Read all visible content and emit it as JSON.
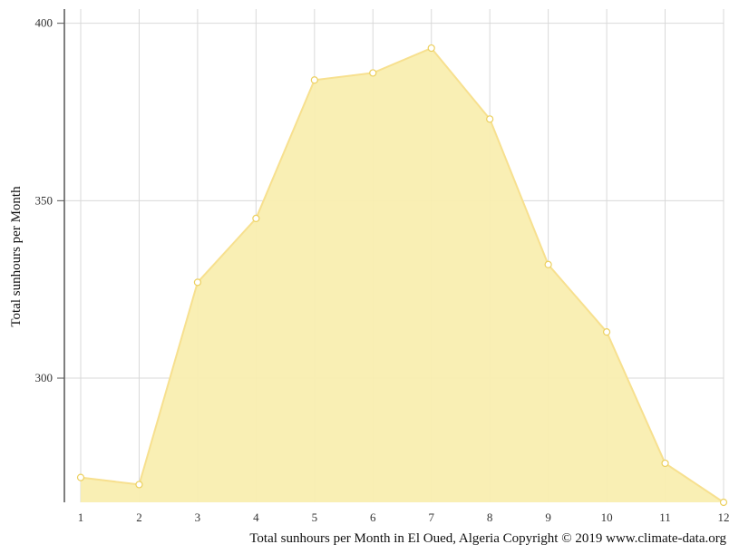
{
  "chart_data": {
    "type": "area",
    "x": [
      1,
      2,
      3,
      4,
      5,
      6,
      7,
      8,
      9,
      10,
      11,
      12
    ],
    "series": [
      {
        "values": [
          272,
          270,
          327,
          345,
          384,
          386,
          393,
          373,
          332,
          313,
          276,
          265
        ]
      }
    ],
    "xlabel": "",
    "ylabel": "Total sunhours per Month",
    "xlim": [
      1,
      12
    ],
    "ylim": [
      265,
      404
    ],
    "yticks": [
      300,
      350,
      400
    ],
    "xticks": [
      1,
      2,
      3,
      4,
      5,
      6,
      7,
      8,
      9,
      10,
      11,
      12
    ],
    "grid": true,
    "caption": "Total sunhours per Month in El Oued, Algeria Copyright © 2019 www.climate-data.org"
  },
  "colors": {
    "fill": "#f9eeb0",
    "line": "#f7e08f",
    "marker_fill": "#ffffff",
    "marker_stroke": "#ecd060",
    "grid": "#d9d9d9",
    "axis": "#555555"
  }
}
